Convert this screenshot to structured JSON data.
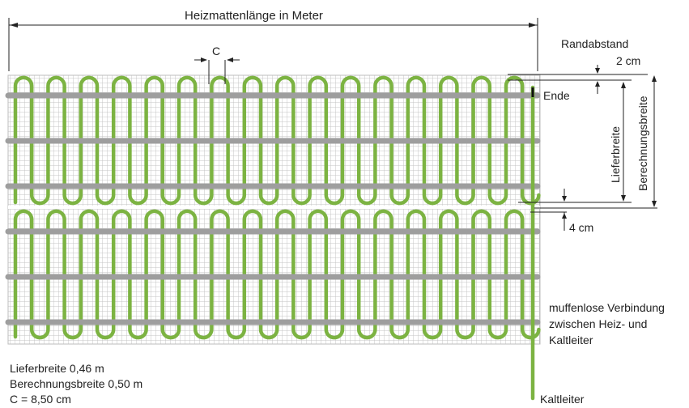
{
  "title": "Heizmattenlänge in Meter",
  "labels": {
    "c": "C",
    "randabstand": "Randabstand",
    "two_cm": "2 cm",
    "ende": "Ende",
    "lieferbreite": "Lieferbreite",
    "berechnungsbreite": "Berechnungsbreite",
    "four_cm": "4 cm",
    "verbindung_1": "muffenlose Verbindung",
    "verbindung_2": "zwischen Heiz- und",
    "verbindung_3": "Kaltleiter",
    "kaltleiter": "Kaltleiter"
  },
  "notes": {
    "line1": "Lieferbreite 0,46 m",
    "line2": "Berechnungsbreite 0,50 m",
    "line3": "C = 8,50 cm"
  },
  "colors": {
    "heating_cable": "#7cb342",
    "carrier_strip": "#9e9e9e",
    "grid": "#c4c4c4",
    "dimension_line": "#222222"
  }
}
